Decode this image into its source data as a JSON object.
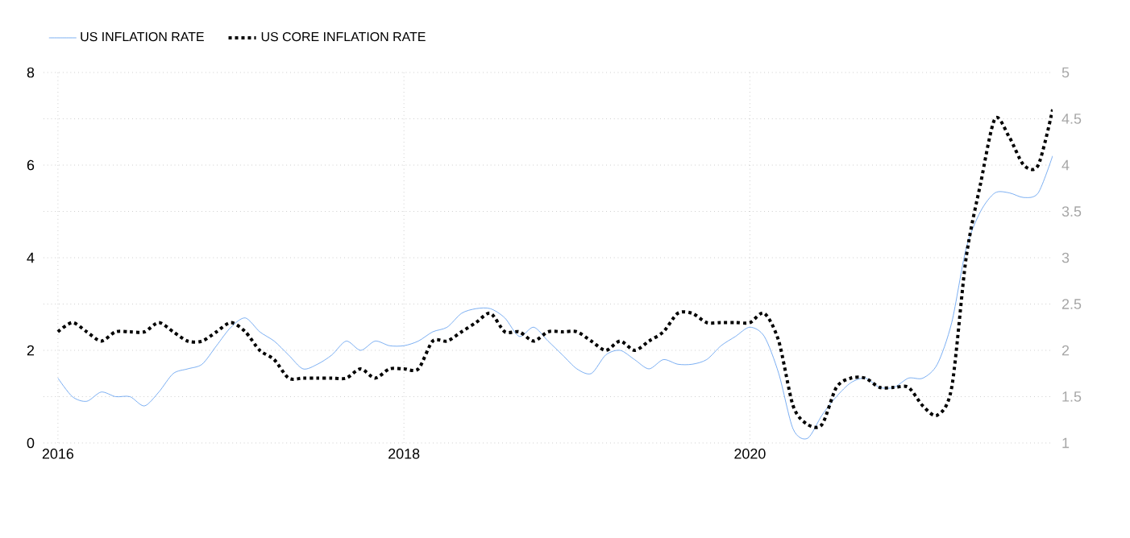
{
  "chart_data": {
    "type": "line",
    "x": [
      "2016-01",
      "2016-02",
      "2016-03",
      "2016-04",
      "2016-05",
      "2016-06",
      "2016-07",
      "2016-08",
      "2016-09",
      "2016-10",
      "2016-11",
      "2016-12",
      "2017-01",
      "2017-02",
      "2017-03",
      "2017-04",
      "2017-05",
      "2017-06",
      "2017-07",
      "2017-08",
      "2017-09",
      "2017-10",
      "2017-11",
      "2017-12",
      "2018-01",
      "2018-02",
      "2018-03",
      "2018-04",
      "2018-05",
      "2018-06",
      "2018-07",
      "2018-08",
      "2018-09",
      "2018-10",
      "2018-11",
      "2018-12",
      "2019-01",
      "2019-02",
      "2019-03",
      "2019-04",
      "2019-05",
      "2019-06",
      "2019-07",
      "2019-08",
      "2019-09",
      "2019-10",
      "2019-11",
      "2019-12",
      "2020-01",
      "2020-02",
      "2020-03",
      "2020-04",
      "2020-05",
      "2020-06",
      "2020-07",
      "2020-08",
      "2020-09",
      "2020-10",
      "2020-11",
      "2020-12",
      "2021-01",
      "2021-02",
      "2021-03",
      "2021-04",
      "2021-05",
      "2021-06",
      "2021-07",
      "2021-08",
      "2021-09",
      "2021-10"
    ],
    "series": [
      {
        "name": "US INFLATION RATE",
        "color": "#5b9bef",
        "line_style": "solid",
        "values": [
          1.4,
          1.0,
          0.9,
          1.1,
          1.0,
          1.0,
          0.8,
          1.1,
          1.5,
          1.6,
          1.7,
          2.1,
          2.5,
          2.7,
          2.4,
          2.2,
          1.9,
          1.6,
          1.7,
          1.9,
          2.2,
          2.0,
          2.2,
          2.1,
          2.1,
          2.2,
          2.4,
          2.5,
          2.8,
          2.9,
          2.9,
          2.7,
          2.3,
          2.5,
          2.2,
          1.9,
          1.6,
          1.5,
          1.9,
          2.0,
          1.8,
          1.6,
          1.8,
          1.7,
          1.7,
          1.8,
          2.1,
          2.3,
          2.5,
          2.3,
          1.5,
          0.3,
          0.1,
          0.6,
          1.0,
          1.3,
          1.4,
          1.2,
          1.2,
          1.4,
          1.4,
          1.7,
          2.6,
          4.2,
          5.0,
          5.4,
          5.4,
          5.3,
          5.4,
          6.2
        ]
      },
      {
        "name": "US CORE INFLATION RATE",
        "color": "#000000",
        "line_style": "dotted",
        "axis": "y2",
        "values": [
          2.2,
          2.3,
          2.2,
          2.1,
          2.2,
          2.2,
          2.2,
          2.3,
          2.2,
          2.1,
          2.1,
          2.2,
          2.3,
          2.2,
          2.0,
          1.9,
          1.7,
          1.7,
          1.7,
          1.7,
          1.7,
          1.8,
          1.7,
          1.8,
          1.8,
          1.8,
          2.1,
          2.1,
          2.2,
          2.3,
          2.4,
          2.2,
          2.2,
          2.1,
          2.2,
          2.2,
          2.2,
          2.1,
          2.0,
          2.1,
          2.0,
          2.1,
          2.2,
          2.4,
          2.4,
          2.3,
          2.3,
          2.3,
          2.3,
          2.4,
          2.1,
          1.4,
          1.2,
          1.2,
          1.6,
          1.7,
          1.7,
          1.6,
          1.6,
          1.6,
          1.4,
          1.3,
          1.6,
          3.0,
          3.8,
          4.5,
          4.3,
          4.0,
          4.0,
          4.6
        ]
      }
    ],
    "xlim": [
      "2015-12",
      "2021-10"
    ],
    "xticks": [
      {
        "value": "2016-01",
        "label": "2016"
      },
      {
        "value": "2018-01",
        "label": "2018"
      },
      {
        "value": "2020-01",
        "label": "2020"
      }
    ],
    "ylim": [
      0,
      8
    ],
    "yticks": [
      0,
      {
        "value": 1,
        "label": null
      },
      2,
      {
        "value": 3,
        "label": null
      },
      4,
      {
        "value": 5,
        "label": null
      },
      6,
      {
        "value": 7,
        "label": null
      },
      8
    ],
    "y2lim": [
      1,
      5
    ],
    "y2ticks": [
      1,
      1.5,
      2,
      2.5,
      3,
      3.5,
      4,
      4.5,
      5
    ],
    "grid": true,
    "legend": "top left"
  }
}
